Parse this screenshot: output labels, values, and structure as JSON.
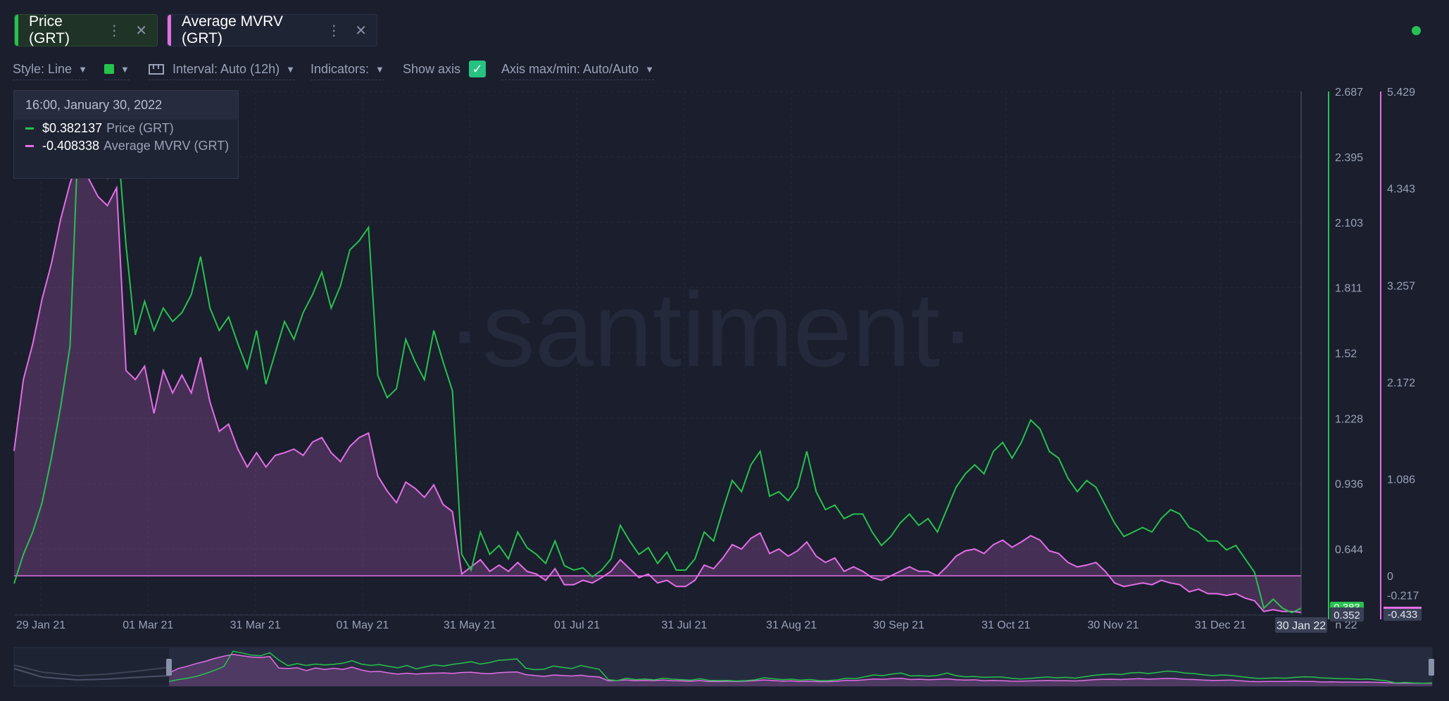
{
  "tabs": [
    {
      "label": "Price (GRT)",
      "color": "#26c24d"
    },
    {
      "label": "Average MVRV (GRT)",
      "color": "#e26ee5"
    }
  ],
  "toolbar": {
    "style": "Style: Line",
    "interval": "Interval: Auto (12h)",
    "indicators": "Indicators:",
    "show_axis": "Show axis",
    "axis_range": "Axis max/min: Auto/Auto"
  },
  "tooltip": {
    "date": "16:00, January 30, 2022",
    "rows": [
      {
        "value": "$0.382137",
        "name": "Price (GRT)"
      },
      {
        "value": "-0.408338",
        "name": "Average MVRV (GRT)"
      }
    ]
  },
  "watermark": "·santiment·",
  "crosshair_label": "30 Jan 22",
  "chart_data": {
    "type": "line",
    "x_ticks": [
      "29 Jan 21",
      "01 Mar 21",
      "31 Mar 21",
      "01 May 21",
      "31 May 21",
      "01 Jul 21",
      "31 Jul 21",
      "31 Aug 21",
      "30 Sep 21",
      "31 Oct 21",
      "30 Nov 21",
      "31 Dec 21"
    ],
    "x_tick_partial": "n 22",
    "price_axis": {
      "ticks": [
        "2.687",
        "2.395",
        "2.103",
        "1.811",
        "1.52",
        "1.228",
        "0.936",
        "0.644",
        "0.352"
      ],
      "range": [
        0.352,
        2.687
      ],
      "current_label": "0.383",
      "color": "#26c24d"
    },
    "mvrv_axis": {
      "ticks": [
        "5.429",
        "4.343",
        "3.257",
        "2.172",
        "1.086",
        "0",
        "-0.217",
        "-0.433"
      ],
      "range": [
        -0.433,
        5.429
      ],
      "current_label": "-0.433",
      "color": "#e26ee5"
    },
    "series": [
      {
        "name": "Price (GRT)",
        "color": "#26c24d",
        "values": [
          0.49,
          0.62,
          0.72,
          0.85,
          1.05,
          1.28,
          1.55,
          2.62,
          2.5,
          2.35,
          2.3,
          2.52,
          2.0,
          1.6,
          1.75,
          1.62,
          1.72,
          1.66,
          1.7,
          1.78,
          1.95,
          1.72,
          1.62,
          1.68,
          1.56,
          1.45,
          1.62,
          1.38,
          1.52,
          1.66,
          1.58,
          1.7,
          1.78,
          1.88,
          1.72,
          1.82,
          1.98,
          2.02,
          2.08,
          1.42,
          1.32,
          1.36,
          1.58,
          1.48,
          1.4,
          1.62,
          1.48,
          1.35,
          0.62,
          0.55,
          0.72,
          0.62,
          0.66,
          0.6,
          0.72,
          0.65,
          0.62,
          0.58,
          0.68,
          0.57,
          0.55,
          0.56,
          0.52,
          0.55,
          0.6,
          0.75,
          0.68,
          0.62,
          0.65,
          0.58,
          0.63,
          0.55,
          0.55,
          0.6,
          0.72,
          0.68,
          0.82,
          0.95,
          0.9,
          1.02,
          1.08,
          0.88,
          0.9,
          0.86,
          0.92,
          1.08,
          0.9,
          0.82,
          0.84,
          0.78,
          0.8,
          0.8,
          0.72,
          0.66,
          0.7,
          0.76,
          0.8,
          0.75,
          0.78,
          0.72,
          0.82,
          0.92,
          0.98,
          1.02,
          0.98,
          1.08,
          1.12,
          1.05,
          1.12,
          1.22,
          1.18,
          1.08,
          1.05,
          0.96,
          0.9,
          0.95,
          0.92,
          0.84,
          0.76,
          0.7,
          0.72,
          0.74,
          0.72,
          0.78,
          0.82,
          0.8,
          0.74,
          0.72,
          0.68,
          0.68,
          0.64,
          0.66,
          0.6,
          0.54,
          0.38,
          0.42,
          0.38,
          0.36,
          0.38
        ]
      },
      {
        "name": "Average MVRV (GRT)",
        "color": "#e26ee5",
        "values": [
          1.4,
          2.2,
          2.6,
          3.1,
          3.5,
          4.0,
          4.4,
          4.7,
          4.45,
          4.25,
          4.15,
          4.35,
          2.3,
          2.2,
          2.35,
          1.82,
          2.3,
          2.05,
          2.25,
          2.05,
          2.45,
          1.95,
          1.62,
          1.7,
          1.42,
          1.22,
          1.38,
          1.22,
          1.35,
          1.38,
          1.42,
          1.35,
          1.5,
          1.55,
          1.38,
          1.28,
          1.45,
          1.55,
          1.6,
          1.12,
          0.95,
          0.82,
          1.05,
          0.98,
          0.88,
          1.02,
          0.8,
          0.72,
          0.02,
          0.1,
          0.18,
          0.05,
          0.12,
          0.05,
          0.15,
          0.05,
          0.02,
          -0.05,
          0.08,
          -0.1,
          -0.1,
          -0.05,
          -0.08,
          -0.02,
          0.05,
          0.18,
          0.08,
          -0.02,
          0.02,
          -0.08,
          -0.05,
          -0.12,
          -0.12,
          -0.05,
          0.12,
          0.08,
          0.2,
          0.35,
          0.3,
          0.42,
          0.48,
          0.25,
          0.3,
          0.22,
          0.28,
          0.38,
          0.22,
          0.15,
          0.2,
          0.05,
          0.1,
          0.05,
          -0.02,
          -0.05,
          0.0,
          0.05,
          0.1,
          0.05,
          0.05,
          0.0,
          0.1,
          0.22,
          0.28,
          0.3,
          0.25,
          0.35,
          0.4,
          0.32,
          0.38,
          0.45,
          0.4,
          0.28,
          0.25,
          0.15,
          0.1,
          0.12,
          0.15,
          0.05,
          -0.08,
          -0.12,
          -0.1,
          -0.08,
          -0.1,
          -0.05,
          -0.08,
          -0.1,
          -0.18,
          -0.15,
          -0.2,
          -0.2,
          -0.22,
          -0.2,
          -0.25,
          -0.28,
          -0.4,
          -0.38,
          -0.4,
          -0.4,
          -0.41
        ]
      }
    ]
  }
}
